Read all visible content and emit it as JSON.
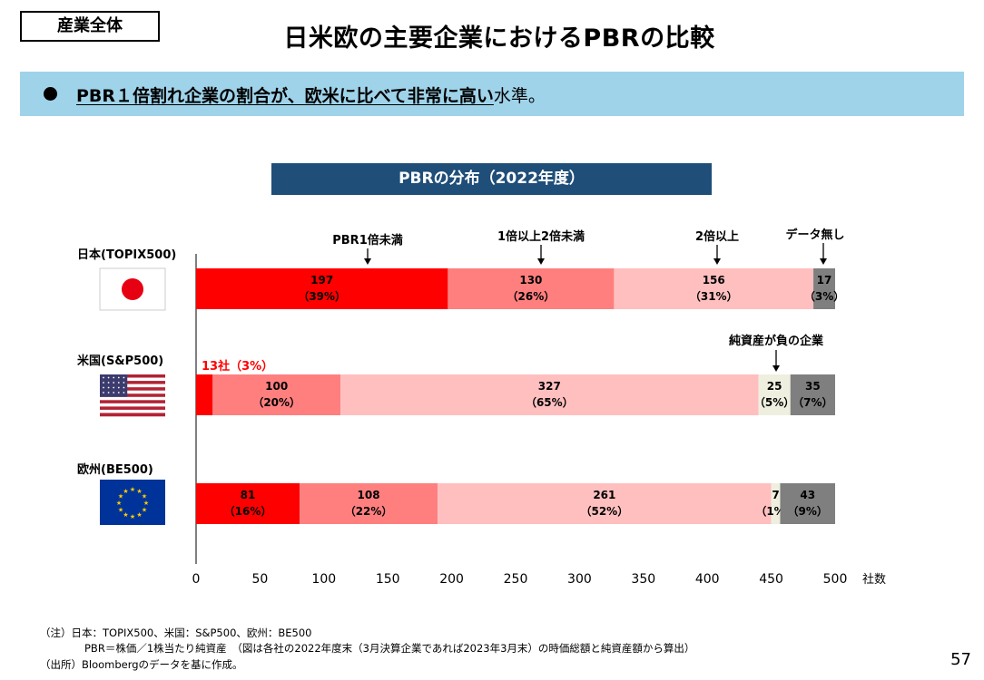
{
  "header": {
    "tag": "産業全体",
    "title": "日米欧の主要企業におけるPBRの比較"
  },
  "banner": {
    "emphasis": "PBR１倍割れ企業の割合が、欧米に比べて非常に高い",
    "rest": "水準。"
  },
  "chart_title": "PBRの分布（2022年度）",
  "chart_data": {
    "type": "bar",
    "orientation": "horizontal",
    "stacked": true,
    "categories": [
      "日本(TOPIX500)",
      "米国(S&P500)",
      "欧州(BE500)"
    ],
    "segment_names": [
      "PBR1倍未満",
      "1倍以上2倍未満",
      "2倍以上",
      "純資産が負の企業",
      "データ無し"
    ],
    "colors": [
      "#ff0000",
      "#ff7f7f",
      "#ffbfbf",
      "#efefdf",
      "#7f7f7f"
    ],
    "rows": [
      {
        "name": "日本(TOPIX500)",
        "flag": "japan-flag",
        "segments": [
          {
            "value": 197,
            "label": "197",
            "pct": "（39%）"
          },
          {
            "value": 130,
            "label": "130",
            "pct": "（26%）"
          },
          {
            "value": 156,
            "label": "156",
            "pct": "（31%）"
          },
          {
            "value": 0,
            "label": "",
            "pct": ""
          },
          {
            "value": 17,
            "label": "17",
            "pct": "（3%）"
          }
        ]
      },
      {
        "name": "米国(S&P500)",
        "flag": "usa-flag",
        "callout": "13社（3%）",
        "segments": [
          {
            "value": 13,
            "label": "",
            "pct": ""
          },
          {
            "value": 100,
            "label": "100",
            "pct": "（20%）"
          },
          {
            "value": 327,
            "label": "327",
            "pct": "（65%）"
          },
          {
            "value": 25,
            "label": "25",
            "pct": "（5%）"
          },
          {
            "value": 35,
            "label": "35",
            "pct": "（7%）"
          }
        ]
      },
      {
        "name": "欧州(BE500)",
        "flag": "eu-flag",
        "segments": [
          {
            "value": 81,
            "label": "81",
            "pct": "（16%）"
          },
          {
            "value": 108,
            "label": "108",
            "pct": "（22%）"
          },
          {
            "value": 261,
            "label": "261",
            "pct": "（52%）"
          },
          {
            "value": 7,
            "label": "7",
            "pct": "（1%）"
          },
          {
            "value": 43,
            "label": "43",
            "pct": "（9%）"
          }
        ]
      }
    ],
    "annotations": [
      "PBR1倍未満",
      "1倍以上2倍未満",
      "2倍以上",
      "データ無し",
      "純資産が負の企業"
    ],
    "xlim": [
      0,
      500
    ],
    "xticks": [
      0,
      50,
      100,
      150,
      200,
      250,
      300,
      350,
      400,
      450,
      500
    ],
    "xunit": "社数"
  },
  "footnotes": [
    "（注）日本：TOPIX500、米国：S&P500、欧州：BE500",
    "PBR＝株価／1株当たり純資産　（図は各社の2022年度末（3月決算企業であれば2023年3月末）の時価総額と純資産額から算出）",
    "（出所）Bloombergのデータを基に作成。"
  ],
  "page_number": "57"
}
